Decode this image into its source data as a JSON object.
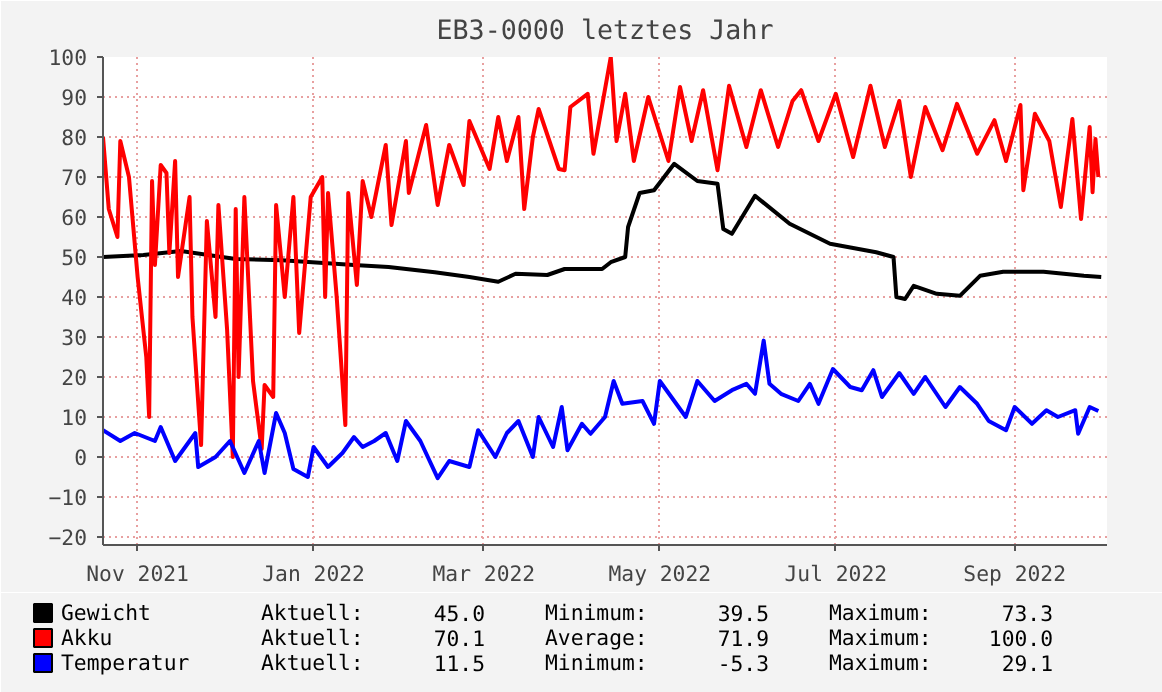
{
  "chart_data": {
    "type": "line",
    "title": "EB3-0000 letztes Jahr",
    "xlim": [
      "2021-10-20",
      "2022-10-03"
    ],
    "ylim": [
      -22,
      100
    ],
    "xticks": [
      {
        "value": "2021-11-01",
        "label": "Nov 2021"
      },
      {
        "value": "2022-01-01",
        "label": "Jan 2022"
      },
      {
        "value": "2022-03-01",
        "label": "Mar 2022"
      },
      {
        "value": "2022-05-01",
        "label": "May 2022"
      },
      {
        "value": "2022-07-01",
        "label": "Jul 2022"
      },
      {
        "value": "2022-09-01",
        "label": "Sep 2022"
      }
    ],
    "yticks": [
      -20,
      -10,
      0,
      10,
      20,
      30,
      40,
      50,
      60,
      70,
      80,
      90,
      100
    ],
    "grid": true,
    "legend": "bottom",
    "series": [
      {
        "name": "Gewicht",
        "color": "#000000",
        "x": [
          "2021-10-20",
          "2021-11-03",
          "2021-11-16",
          "2021-12-05",
          "2021-12-21",
          "2022-01-15",
          "2022-01-27",
          "2022-02-12",
          "2022-02-24",
          "2022-03-06",
          "2022-03-12",
          "2022-03-23",
          "2022-03-29",
          "2022-04-11",
          "2022-04-14",
          "2022-04-19",
          "2022-04-20",
          "2022-04-24",
          "2022-04-29",
          "2022-05-06",
          "2022-05-14",
          "2022-05-21",
          "2022-05-23",
          "2022-05-26",
          "2022-06-03",
          "2022-06-15",
          "2022-06-29",
          "2022-07-15",
          "2022-07-21",
          "2022-07-22",
          "2022-07-25",
          "2022-07-28",
          "2022-08-05",
          "2022-08-13",
          "2022-08-20",
          "2022-08-28",
          "2022-09-11",
          "2022-09-25",
          "2022-10-01"
        ],
        "values": [
          50,
          50.5,
          51.5,
          49.5,
          49.2,
          48,
          47.5,
          46.2,
          45,
          43.8,
          45.8,
          45.5,
          47,
          47,
          48.7,
          50,
          57.5,
          66,
          66.7,
          73.3,
          69,
          68.3,
          57,
          55.8,
          65.3,
          58.3,
          53.3,
          51.2,
          50,
          40,
          39.5,
          42.8,
          40.8,
          40.3,
          45.3,
          46.3,
          46.3,
          45.3,
          45
        ]
      },
      {
        "name": "Akku",
        "color": "#ff0000",
        "x": [
          "2021-10-20",
          "2021-10-22",
          "2021-10-25",
          "2021-10-26",
          "2021-10-29",
          "2021-11-01",
          "2021-11-04",
          "2021-11-05",
          "2021-11-06",
          "2021-11-07",
          "2021-11-09",
          "2021-11-11",
          "2021-11-12",
          "2021-11-14",
          "2021-11-15",
          "2021-11-19",
          "2021-11-20",
          "2021-11-23",
          "2021-11-25",
          "2021-11-28",
          "2021-11-29",
          "2021-12-02",
          "2021-12-04",
          "2021-12-05",
          "2021-12-06",
          "2021-12-08",
          "2021-12-11",
          "2021-12-14",
          "2021-12-15",
          "2021-12-18",
          "2021-12-19",
          "2021-12-22",
          "2021-12-25",
          "2021-12-27",
          "2021-12-31",
          "2022-01-04",
          "2022-01-05",
          "2022-01-06",
          "2022-01-09",
          "2022-01-12",
          "2022-01-13",
          "2022-01-16",
          "2022-01-18",
          "2022-01-21",
          "2022-01-26",
          "2022-01-28",
          "2022-02-02",
          "2022-02-03",
          "2022-02-09",
          "2022-02-13",
          "2022-02-17",
          "2022-02-22",
          "2022-02-24",
          "2022-03-03",
          "2022-03-06",
          "2022-03-09",
          "2022-03-13",
          "2022-03-15",
          "2022-03-18",
          "2022-03-20",
          "2022-03-27",
          "2022-03-29",
          "2022-03-31",
          "2022-04-06",
          "2022-04-08",
          "2022-04-14",
          "2022-04-16",
          "2022-04-19",
          "2022-04-22",
          "2022-04-27",
          "2022-05-04",
          "2022-05-08",
          "2022-05-12",
          "2022-05-16",
          "2022-05-21",
          "2022-05-25",
          "2022-05-31",
          "2022-06-05",
          "2022-06-11",
          "2022-06-16",
          "2022-06-19",
          "2022-06-25",
          "2022-07-01",
          "2022-07-07",
          "2022-07-13",
          "2022-07-18",
          "2022-07-23",
          "2022-07-27",
          "2022-08-01",
          "2022-08-07",
          "2022-08-12",
          "2022-08-19",
          "2022-08-25",
          "2022-08-29",
          "2022-09-03",
          "2022-09-04",
          "2022-09-08",
          "2022-09-13",
          "2022-09-17",
          "2022-09-21",
          "2022-09-24",
          "2022-09-27",
          "2022-09-28",
          "2022-09-29",
          "2022-09-30"
        ],
        "values": [
          80,
          62,
          55,
          79,
          70,
          45,
          25,
          10,
          69,
          48,
          73,
          71,
          51,
          74,
          45,
          65,
          35,
          3,
          59,
          35,
          63,
          32,
          0,
          62,
          20,
          65,
          19,
          2,
          18,
          15,
          63,
          40,
          65,
          31,
          65,
          70,
          40,
          66,
          40,
          8,
          66,
          43,
          69,
          60,
          78,
          58,
          79,
          66,
          83,
          63,
          78,
          68,
          84,
          72,
          85,
          74,
          85,
          62,
          80,
          87,
          72,
          71.7,
          87.5,
          90.8,
          75.8,
          100,
          79,
          90.8,
          74,
          90,
          74,
          92.5,
          79,
          91.7,
          71.7,
          92.8,
          77.5,
          91.7,
          77.5,
          89,
          91.7,
          79,
          90.8,
          75,
          92.8,
          77.5,
          89,
          70,
          87.5,
          76.7,
          88.3,
          75.8,
          84.2,
          74,
          88,
          66.7,
          85.8,
          79,
          62.5,
          84.5,
          59.5,
          82.5,
          66.2,
          79.5,
          70
        ]
      },
      {
        "name": "Temperatur",
        "color": "#0000ff",
        "x": [
          "2021-10-20",
          "2021-10-26",
          "2021-10-31",
          "2021-11-07",
          "2021-11-09",
          "2021-11-14",
          "2021-11-21",
          "2021-11-22",
          "2021-11-28",
          "2021-12-03",
          "2021-12-08",
          "2021-12-13",
          "2021-12-15",
          "2021-12-19",
          "2021-12-22",
          "2021-12-25",
          "2021-12-30",
          "2022-01-01",
          "2022-01-06",
          "2022-01-11",
          "2022-01-15",
          "2022-01-18",
          "2022-01-22",
          "2022-01-26",
          "2022-01-30",
          "2022-02-02",
          "2022-02-07",
          "2022-02-13",
          "2022-02-17",
          "2022-02-24",
          "2022-02-27",
          "2022-03-05",
          "2022-03-09",
          "2022-03-13",
          "2022-03-18",
          "2022-03-20",
          "2022-03-25",
          "2022-03-28",
          "2022-03-30",
          "2022-04-04",
          "2022-04-07",
          "2022-04-12",
          "2022-04-15",
          "2022-04-18",
          "2022-04-25",
          "2022-04-29",
          "2022-05-01",
          "2022-05-06",
          "2022-05-10",
          "2022-05-14",
          "2022-05-20",
          "2022-05-26",
          "2022-05-31",
          "2022-06-03",
          "2022-06-06",
          "2022-06-08",
          "2022-06-12",
          "2022-06-18",
          "2022-06-22",
          "2022-06-25",
          "2022-06-30",
          "2022-07-06",
          "2022-07-10",
          "2022-07-14",
          "2022-07-17",
          "2022-07-23",
          "2022-07-28",
          "2022-08-01",
          "2022-08-08",
          "2022-08-13",
          "2022-08-19",
          "2022-08-23",
          "2022-08-29",
          "2022-09-01",
          "2022-09-07",
          "2022-09-12",
          "2022-09-16",
          "2022-09-22",
          "2022-09-23",
          "2022-09-27",
          "2022-09-30"
        ],
        "values": [
          6.7,
          4,
          6,
          4,
          7.5,
          -1,
          6,
          -2.5,
          0,
          4,
          -4,
          4,
          -4,
          11,
          6,
          -3,
          -5,
          2.5,
          -2.5,
          1,
          5,
          2.5,
          4,
          6,
          -1,
          9,
          4,
          -5.3,
          -1,
          -2.5,
          6.7,
          0,
          6,
          9,
          0,
          10,
          2.5,
          12.5,
          1.7,
          8.3,
          5.8,
          10,
          19,
          13.3,
          14,
          8.3,
          19,
          14,
          10,
          19,
          14,
          16.7,
          18.3,
          15.8,
          29.1,
          18.3,
          15.8,
          14,
          18.3,
          13.3,
          22,
          17.5,
          16.7,
          21.7,
          15,
          21,
          15.8,
          20,
          12.5,
          17.5,
          13.3,
          9,
          6.7,
          12.5,
          8.3,
          11.7,
          10,
          11.7,
          5.8,
          12.5,
          11.5
        ]
      }
    ],
    "annotations": [
      "Aktuell: 45.0",
      "Minimum: 39.5",
      "Maximum: 73.3",
      "Aktuell: 70.1",
      "Average: 71.9",
      "Maximum: 100.0",
      "Aktuell: 11.5",
      "Minimum: -5.3",
      "Maximum: 29.1"
    ]
  }
}
